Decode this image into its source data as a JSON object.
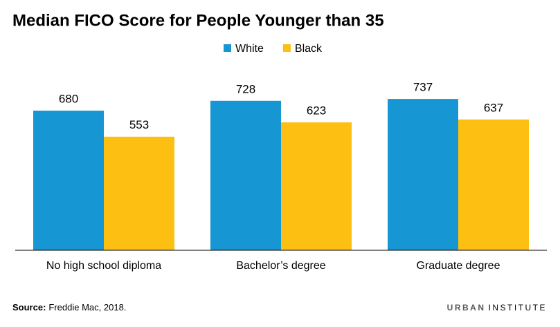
{
  "chart_data": {
    "type": "bar",
    "title": "Median FICO Score for People Younger than 35",
    "categories": [
      "No high school diploma",
      "Bachelor’s degree",
      "Graduate degree"
    ],
    "series": [
      {
        "name": "White",
        "color": "#1696d2",
        "values": [
          680,
          728,
          737
        ]
      },
      {
        "name": "Black",
        "color": "#fdbf11",
        "values": [
          553,
          623,
          637
        ]
      }
    ],
    "ylim": [
      0,
      800
    ],
    "grid": false,
    "legend": "top"
  },
  "footer": {
    "source_label": "Source:",
    "source": "Freddie Mac, 2018.",
    "logo_primary": "URBAN",
    "logo_secondary": "INSTITUTE"
  }
}
